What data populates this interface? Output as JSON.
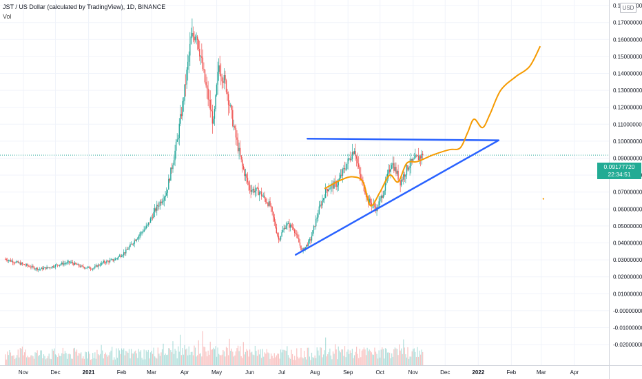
{
  "header": {
    "title": "JST / US Dollar (calculated by TradingView), 1D, BINANCE",
    "vol_label": "Vol"
  },
  "currency_badge": "USD",
  "price_tag": {
    "price": "0.09177720",
    "countdown": "22:34:51"
  },
  "colors": {
    "up_candle": "#26a69a",
    "down_candle": "#ef5350",
    "trendline": "#2962ff",
    "projection": "#f59a00",
    "price_tag": "#22ab94",
    "grid": "#f0f3fa"
  },
  "chart_data": {
    "type": "candlestick",
    "ylim": [
      -0.025,
      0.196
    ],
    "y_ticks": [
      "0.18000000",
      "0.17000000",
      "0.16000000",
      "0.15000000",
      "0.14000000",
      "0.13000000",
      "0.12000000",
      "0.11000000",
      "0.10000000",
      "0.09000000",
      "0.08000000",
      "0.07000000",
      "0.06000000",
      "0.05000000",
      "0.04000000",
      "0.03000000",
      "0.02000000",
      "0.01000000",
      "-0.00000000",
      "-0.01000000",
      "-0.02000000"
    ],
    "y_tick_values": [
      0.18,
      0.17,
      0.16,
      0.15,
      0.14,
      0.13,
      0.12,
      0.11,
      0.1,
      0.09,
      0.08,
      0.07,
      0.06,
      0.05,
      0.04,
      0.03,
      0.02,
      0.01,
      0.0,
      -0.01,
      -0.02
    ],
    "x_ticks": [
      "Nov",
      "Dec",
      "2021",
      "Feb",
      "Mar",
      "Apr",
      "May",
      "Jun",
      "Jul",
      "Aug",
      "Sep",
      "Oct",
      "Nov",
      "Dec",
      "2022",
      "Feb",
      "Mar",
      "Apr"
    ],
    "x_tick_dates": [
      "2020-11-01",
      "2020-12-01",
      "2021-01-01",
      "2021-02-01",
      "2021-03-01",
      "2021-04-01",
      "2021-05-01",
      "2021-06-01",
      "2021-07-01",
      "2021-08-01",
      "2021-09-01",
      "2021-10-01",
      "2021-11-01",
      "2021-12-01",
      "2022-01-01",
      "2022-02-01",
      "2022-03-01",
      "2022-04-01"
    ],
    "x_ticks_bold": [
      "2021",
      "2022"
    ],
    "price_path": [
      [
        "2020-10-15",
        0.0305
      ],
      [
        "2020-10-25",
        0.0285
      ],
      [
        "2020-11-05",
        0.0265
      ],
      [
        "2020-11-15",
        0.0245
      ],
      [
        "2020-11-25",
        0.0255
      ],
      [
        "2020-12-05",
        0.0275
      ],
      [
        "2020-12-15",
        0.0285
      ],
      [
        "2020-12-25",
        0.026
      ],
      [
        "2021-01-05",
        0.025
      ],
      [
        "2021-01-15",
        0.0285
      ],
      [
        "2021-01-25",
        0.03
      ],
      [
        "2021-02-05",
        0.035
      ],
      [
        "2021-02-15",
        0.043
      ],
      [
        "2021-02-25",
        0.05
      ],
      [
        "2021-03-05",
        0.06
      ],
      [
        "2021-03-15",
        0.07
      ],
      [
        "2021-03-25",
        0.1
      ],
      [
        "2021-04-01",
        0.13
      ],
      [
        "2021-04-07",
        0.16
      ],
      [
        "2021-04-12",
        0.165
      ],
      [
        "2021-04-20",
        0.135
      ],
      [
        "2021-04-28",
        0.11
      ],
      [
        "2021-05-03",
        0.145
      ],
      [
        "2021-05-10",
        0.132
      ],
      [
        "2021-05-18",
        0.105
      ],
      [
        "2021-05-25",
        0.085
      ],
      [
        "2021-06-01",
        0.072
      ],
      [
        "2021-06-10",
        0.07
      ],
      [
        "2021-06-20",
        0.062
      ],
      [
        "2021-06-28",
        0.042
      ],
      [
        "2021-07-05",
        0.051
      ],
      [
        "2021-07-12",
        0.049
      ],
      [
        "2021-07-20",
        0.035
      ],
      [
        "2021-07-28",
        0.042
      ],
      [
        "2021-08-05",
        0.06
      ],
      [
        "2021-08-12",
        0.072
      ],
      [
        "2021-08-22",
        0.075
      ],
      [
        "2021-09-01",
        0.088
      ],
      [
        "2021-09-07",
        0.096
      ],
      [
        "2021-09-12",
        0.08
      ],
      [
        "2021-09-20",
        0.065
      ],
      [
        "2021-09-28",
        0.06
      ],
      [
        "2021-10-05",
        0.072
      ],
      [
        "2021-10-12",
        0.088
      ],
      [
        "2021-10-20",
        0.076
      ],
      [
        "2021-10-28",
        0.086
      ],
      [
        "2021-11-05",
        0.09
      ],
      [
        "2021-11-10",
        0.0918
      ]
    ],
    "trendlines": [
      {
        "name": "resistance",
        "points": [
          [
            "2021-07-25",
            0.1015
          ],
          [
            "2022-01-20",
            0.1005
          ]
        ]
      },
      {
        "name": "support",
        "points": [
          [
            "2021-07-14",
            0.033
          ],
          [
            "2022-01-20",
            0.1005
          ]
        ]
      }
    ],
    "projection_path": [
      [
        "2021-08-10",
        0.072
      ],
      [
        "2021-08-25",
        0.077
      ],
      [
        "2021-09-05",
        0.079
      ],
      [
        "2021-09-15",
        0.076
      ],
      [
        "2021-09-22",
        0.062
      ],
      [
        "2021-10-01",
        0.07
      ],
      [
        "2021-10-10",
        0.08
      ],
      [
        "2021-10-18",
        0.076
      ],
      [
        "2021-10-26",
        0.087
      ],
      [
        "2021-11-05",
        0.088
      ],
      [
        "2021-11-20",
        0.092
      ],
      [
        "2021-12-05",
        0.095
      ],
      [
        "2021-12-15",
        0.096
      ],
      [
        "2021-12-22",
        0.105
      ],
      [
        "2021-12-28",
        0.113
      ],
      [
        "2022-01-05",
        0.108
      ],
      [
        "2022-01-12",
        0.116
      ],
      [
        "2022-01-22",
        0.13
      ],
      [
        "2022-02-05",
        0.138
      ],
      [
        "2022-02-18",
        0.144
      ],
      [
        "2022-02-28",
        0.156
      ]
    ],
    "stray_point": [
      "2022-03-03",
      0.066
    ],
    "current_price": 0.0917772
  }
}
